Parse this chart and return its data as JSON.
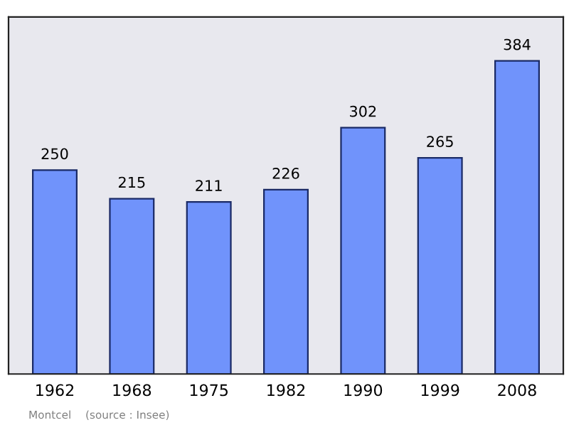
{
  "chart_data": {
    "type": "bar",
    "categories": [
      "1962",
      "1968",
      "1975",
      "1982",
      "1990",
      "1999",
      "2008"
    ],
    "values": [
      250,
      215,
      211,
      226,
      302,
      265,
      384
    ],
    "color": "#7093fb",
    "data_labels": true,
    "annotations": [
      "Montcel",
      "(source : Insee)"
    ]
  }
}
